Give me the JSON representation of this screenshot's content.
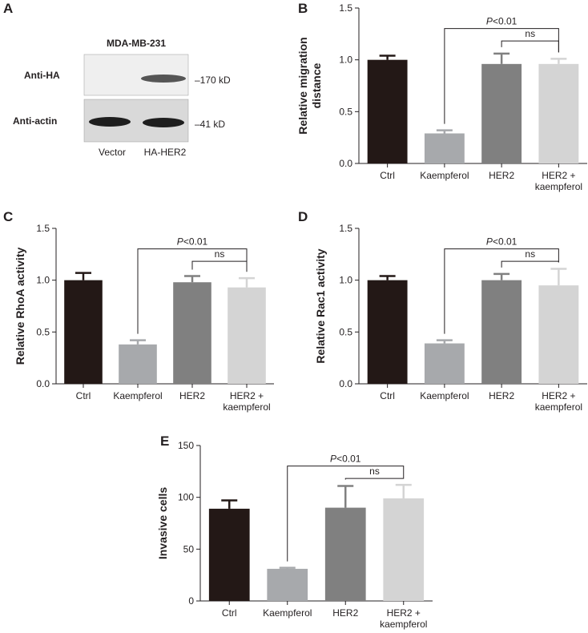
{
  "panel_a": {
    "label": "A",
    "cell_line": "MDA-MB-231",
    "rows": [
      "Anti-HA",
      "Anti-actin"
    ],
    "sizes": [
      "–170 kD",
      "–41 kD"
    ],
    "lanes": [
      "Vector",
      "HA-HER2"
    ]
  },
  "chart_data": [
    {
      "type": "bar",
      "panel_label": "B",
      "ylabel": "Relative migration\ndistance",
      "categories": [
        "Ctrl",
        "Kaempferol",
        "HER2",
        "HER2 +\nkaempferol"
      ],
      "values": [
        1.0,
        0.29,
        0.96,
        0.96
      ],
      "errors": [
        0.04,
        0.03,
        0.1,
        0.05
      ],
      "colors": [
        "#231816",
        "#a7a9ac",
        "#808080",
        "#d4d4d4"
      ],
      "ylim": [
        0,
        1.5
      ],
      "yticks": [
        {
          "value": 0,
          "label": "0.0"
        },
        0.5,
        {
          "value": 1,
          "label": "1.0"
        },
        1.5
      ],
      "annotations": [
        "P<0.01",
        "ns"
      ]
    },
    {
      "type": "bar",
      "panel_label": "C",
      "ylabel": "Relative RhoA activity",
      "categories": [
        "Ctrl",
        "Kaempferol",
        "HER2",
        "HER2 +\nkaempferol"
      ],
      "values": [
        1.0,
        0.38,
        0.98,
        0.93
      ],
      "errors": [
        0.07,
        0.04,
        0.06,
        0.09
      ],
      "colors": [
        "#231816",
        "#a7a9ac",
        "#808080",
        "#d4d4d4"
      ],
      "ylim": [
        0,
        1.5
      ],
      "yticks": [
        {
          "value": 0,
          "label": "0.0"
        },
        0.5,
        {
          "value": 1,
          "label": "1.0"
        },
        1.5
      ],
      "annotations": [
        "P<0.01",
        "ns"
      ]
    },
    {
      "type": "bar",
      "panel_label": "D",
      "ylabel": "Relative Rac1 activity",
      "categories": [
        "Ctrl",
        "Kaempferol",
        "HER2",
        "HER2 +\nkaempferol"
      ],
      "values": [
        1.0,
        0.39,
        1.0,
        0.95
      ],
      "errors": [
        0.04,
        0.03,
        0.06,
        0.16
      ],
      "colors": [
        "#231816",
        "#a7a9ac",
        "#808080",
        "#d4d4d4"
      ],
      "ylim": [
        0,
        1.5
      ],
      "yticks": [
        {
          "value": 0,
          "label": "0.0"
        },
        0.5,
        {
          "value": 1,
          "label": "1.0"
        },
        1.5
      ],
      "annotations": [
        "P<0.01",
        "ns"
      ]
    },
    {
      "type": "bar",
      "panel_label": "E",
      "ylabel": "Invasive cells",
      "categories": [
        "Ctrl",
        "Kaempferol",
        "HER2",
        "HER2 +\nkaempferol"
      ],
      "values": [
        89,
        31,
        90,
        99
      ],
      "errors": [
        8,
        1,
        21,
        13
      ],
      "colors": [
        "#231816",
        "#a7a9ac",
        "#808080",
        "#d4d4d4"
      ],
      "ylim": [
        0,
        150
      ],
      "yticks": [
        0,
        50,
        100,
        150
      ],
      "annotations": [
        "P<0.01",
        "ns"
      ]
    }
  ]
}
